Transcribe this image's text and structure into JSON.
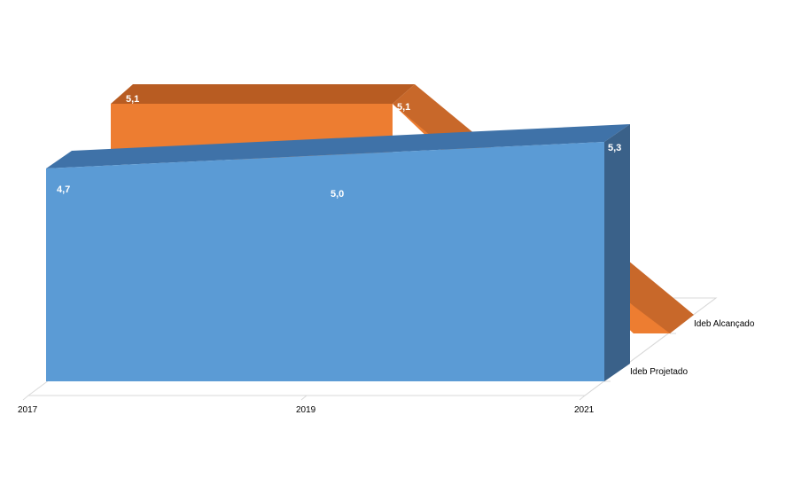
{
  "chart_data": {
    "type": "area",
    "style": "3d-area",
    "categories": [
      "2017",
      "2019",
      "2021"
    ],
    "series": [
      {
        "name": "Ideb Alcançado",
        "values": [
          5.1,
          5.1,
          null
        ],
        "labels": [
          "5,1",
          "5,1",
          ""
        ],
        "color": "#ED7D31",
        "top_color": "#B85C22",
        "side_color": "#C8682A"
      },
      {
        "name": "Ideb Projetado",
        "values": [
          4.7,
          5.0,
          5.3
        ],
        "labels": [
          "4,7",
          "5,0",
          "5,3"
        ],
        "color": "#5B9BD5",
        "top_color": "#3F72A8",
        "side_color": "#3A6189"
      }
    ],
    "depth_labels": [
      "Ideb Projetado",
      "Ideb Alcançado"
    ],
    "grid": false,
    "legend": "none"
  }
}
